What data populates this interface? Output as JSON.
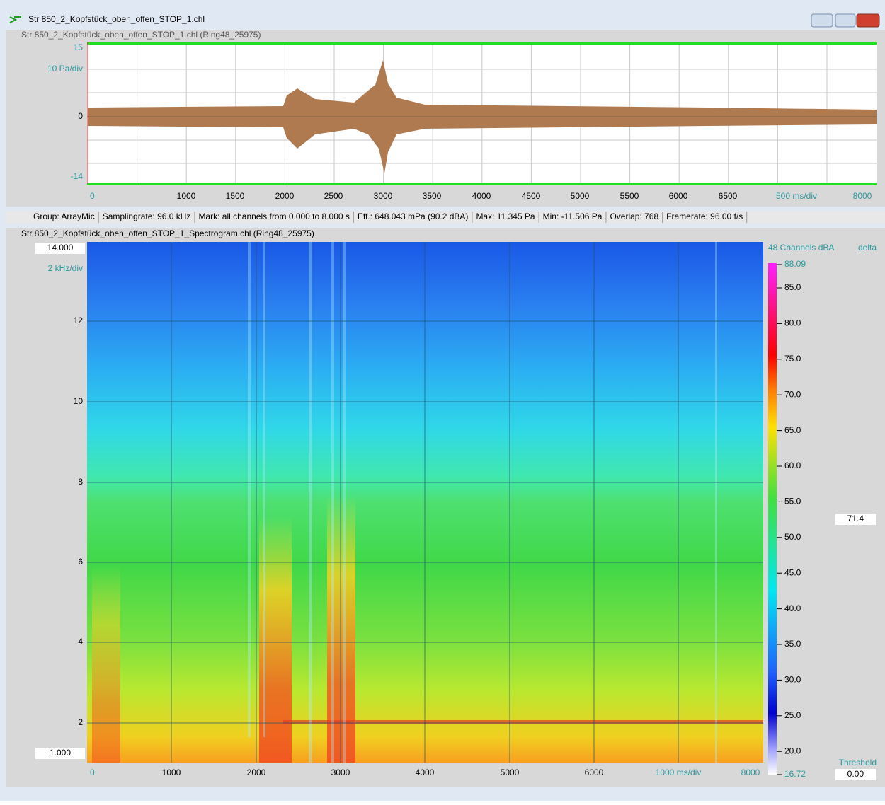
{
  "window": {
    "title": "Str 850_2_Kopfstück_oben_offen_STOP_1.chl"
  },
  "waveform_panel": {
    "title": "Str 850_2_Kopfstück_oben_offen_STOP_1.chl (Ring48_25975)",
    "y_labels": [
      "15",
      "10 Pa/div",
      "0",
      "-14"
    ],
    "x_labels": [
      "0",
      "1000",
      "1500",
      "2000",
      "2500",
      "3000",
      "3500",
      "4000",
      "4500",
      "5000",
      "5500",
      "6000",
      "6500",
      "500 ms/div",
      "8000"
    ]
  },
  "status_bar": [
    "Group: ArrayMic",
    "Samplingrate: 96.0 kHz",
    "Mark: all channels from 0.000 to 8.000 s",
    "Eff.: 648.043 mPa (90.2 dBA)",
    "Max: 11.345 Pa",
    "Min: -11.506 Pa",
    "Overlap: 768",
    "Framerate: 96.00 f/s"
  ],
  "spectrogram_panel": {
    "title": "Str 850_2_Kopfstück_oben_offen_STOP_1_Spectrogram.chl (Ring48_25975)",
    "y_labels": [
      "14.000",
      "2 kHz/div",
      "12",
      "10",
      "8",
      "6",
      "4",
      "2",
      "1.000"
    ],
    "x_labels": [
      "0",
      "1000",
      "2000",
      "3000",
      "4000",
      "5000",
      "6000",
      "1000 ms/div",
      "8000"
    ],
    "colorbar": {
      "title": "48 Channels dBA",
      "mode": "delta",
      "labels": [
        "88.09",
        "85.0",
        "80.0",
        "75.0",
        "70.0",
        "65.0",
        "60.0",
        "55.0",
        "50.0",
        "45.0",
        "40.0",
        "35.0",
        "30.0",
        "25.0",
        "20.0",
        "16.72"
      ],
      "cursor_value": "71.4",
      "threshold_label": "Threshold",
      "threshold_value": "0.00"
    }
  }
}
